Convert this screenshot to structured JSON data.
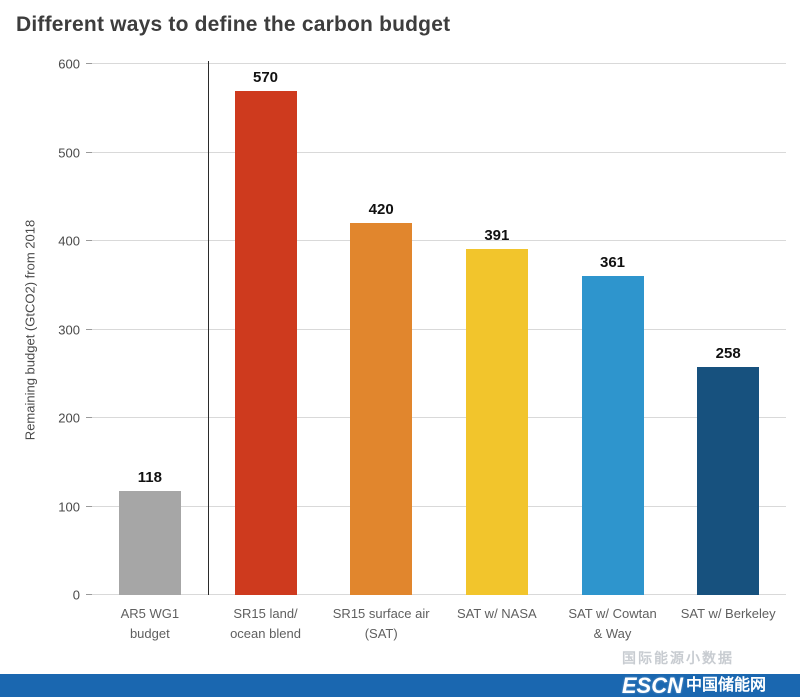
{
  "title": "Different ways to define the carbon budget",
  "chart_data": {
    "type": "bar",
    "categories": [
      "AR5 WG1\nbudget",
      "SR15 land/\nocean blend",
      "SR15 surface air\n(SAT)",
      "SAT w/ NASA",
      "SAT w/ Cowtan\n& Way",
      "SAT w/ Berkeley"
    ],
    "values": [
      118,
      570,
      420,
      391,
      361,
      258
    ],
    "colors": [
      "#a6a6a6",
      "#ce3a1e",
      "#e1862d",
      "#f2c52c",
      "#2e95cd",
      "#17517e"
    ],
    "title": "Different ways to define the carbon budget",
    "xlabel": "",
    "ylabel": "Remaining budget (GtCO2) from 2018",
    "ylim": [
      0,
      600
    ],
    "yticks": [
      0,
      100,
      200,
      300,
      400,
      500,
      600
    ],
    "grid": true,
    "legend": "none",
    "separator_after_index": 0,
    "separator_note": "vertical line divides AR5 WG1 budget bar from SR15-based bars"
  },
  "footer": {
    "watermark": "国际能源小数据",
    "brand_latin": "ESCN",
    "brand_cn": "中国储能网",
    "brand_color": "#1a67b0"
  }
}
